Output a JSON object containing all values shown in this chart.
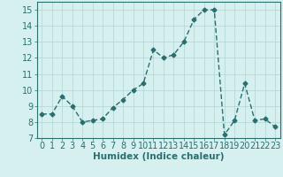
{
  "x": [
    0,
    1,
    2,
    3,
    4,
    5,
    6,
    7,
    8,
    9,
    10,
    11,
    12,
    13,
    14,
    15,
    16,
    17,
    18,
    19,
    20,
    21,
    22,
    23
  ],
  "y": [
    8.5,
    8.5,
    9.6,
    9.0,
    8.0,
    8.1,
    8.2,
    8.9,
    9.4,
    10.0,
    10.4,
    12.5,
    12.0,
    12.2,
    13.0,
    14.4,
    15.0,
    15.0,
    7.2,
    8.1,
    10.4,
    8.1,
    8.2,
    7.7
  ],
  "line_color": "#2a6e6e",
  "marker": "D",
  "marker_size": 2.5,
  "bg_color": "#d6f0f0",
  "grid_color": "#b8d8d8",
  "xlabel": "Humidex (Indice chaleur)",
  "ylim": [
    7,
    15.5
  ],
  "xlim": [
    -0.5,
    23.5
  ],
  "yticks": [
    7,
    8,
    9,
    10,
    11,
    12,
    13,
    14,
    15
  ],
  "xticks": [
    0,
    1,
    2,
    3,
    4,
    5,
    6,
    7,
    8,
    9,
    10,
    11,
    12,
    13,
    14,
    15,
    16,
    17,
    18,
    19,
    20,
    21,
    22,
    23
  ],
  "xlabel_fontsize": 7.5,
  "tick_fontsize": 7.0,
  "linewidth": 1.0
}
